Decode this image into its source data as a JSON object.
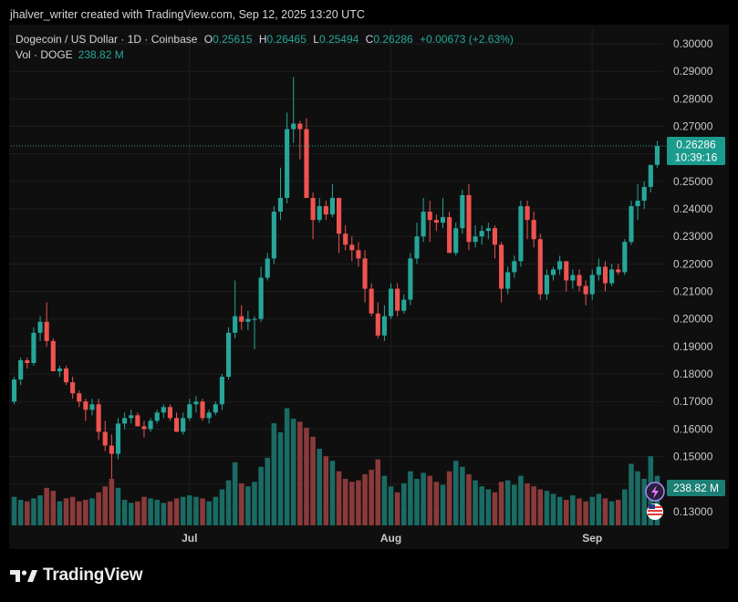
{
  "header": {
    "created_text": "jhalver_writer created with TradingView.com, Sep 12, 2025 13:20 UTC"
  },
  "legend": {
    "symbol": "Dogecoin / US Dollar · 1D · Coinbase",
    "o_label": "O",
    "o_value": "0.25615",
    "h_label": "H",
    "h_value": "0.26465",
    "l_label": "L",
    "l_value": "0.25494",
    "c_label": "C",
    "c_value": "0.26286",
    "change": "+0.00673 (+2.63%)",
    "vol_label": "Vol · DOGE",
    "vol_value": "238.82 M"
  },
  "price_tag": {
    "price": "0.26286",
    "countdown": "10:39:16"
  },
  "volume_tag": "238.82 M",
  "footer": {
    "brand": "TradingView"
  },
  "colors": {
    "up": "#26a69a",
    "down": "#ef5350",
    "vol_up": "#1a6b64",
    "vol_down": "#8a3a3a",
    "bg": "#0f0f0f",
    "grid": "#1f1f1f",
    "axis_text": "#c8c8c8"
  },
  "icons": {
    "logo": "tradingview-logo-icon",
    "event_1": "lightning-event-icon",
    "event_2": "us-flag-event-icon"
  },
  "chart_data": {
    "type": "candlestick",
    "ylim": [
      0.125,
      0.302
    ],
    "yticks": [
      "0.30000",
      "0.29000",
      "0.28000",
      "0.27000",
      "0.26000",
      "0.25000",
      "0.24000",
      "0.23000",
      "0.22000",
      "0.21000",
      "0.20000",
      "0.19000",
      "0.18000",
      "0.17000",
      "0.16000",
      "0.15000",
      "0.14000",
      "0.13000"
    ],
    "xticks": [
      {
        "label": "Jul",
        "index": 27
      },
      {
        "label": "Aug",
        "index": 58
      },
      {
        "label": "Sep",
        "index": 89
      }
    ],
    "candles": [
      [
        0.17,
        0.179,
        0.169,
        0.178,
        1.9
      ],
      [
        0.178,
        0.186,
        0.176,
        0.185,
        1.7
      ],
      [
        0.185,
        0.186,
        0.182,
        0.184,
        1.6
      ],
      [
        0.184,
        0.197,
        0.183,
        0.195,
        1.8
      ],
      [
        0.195,
        0.201,
        0.192,
        0.199,
        2.0
      ],
      [
        0.199,
        0.206,
        0.19,
        0.192,
        2.5
      ],
      [
        0.192,
        0.193,
        0.181,
        0.181,
        2.3
      ],
      [
        0.181,
        0.183,
        0.179,
        0.182,
        1.6
      ],
      [
        0.182,
        0.183,
        0.176,
        0.177,
        1.8
      ],
      [
        0.177,
        0.179,
        0.171,
        0.173,
        1.9
      ],
      [
        0.173,
        0.174,
        0.168,
        0.17,
        1.6
      ],
      [
        0.17,
        0.171,
        0.163,
        0.167,
        1.7
      ],
      [
        0.167,
        0.171,
        0.165,
        0.169,
        1.8
      ],
      [
        0.169,
        0.171,
        0.156,
        0.159,
        2.2
      ],
      [
        0.159,
        0.163,
        0.152,
        0.154,
        2.6
      ],
      [
        0.154,
        0.158,
        0.142,
        0.151,
        3.1
      ],
      [
        0.151,
        0.164,
        0.149,
        0.162,
        2.5
      ],
      [
        0.162,
        0.166,
        0.16,
        0.164,
        1.7
      ],
      [
        0.164,
        0.167,
        0.162,
        0.165,
        1.5
      ],
      [
        0.165,
        0.166,
        0.161,
        0.161,
        1.6
      ],
      [
        0.161,
        0.163,
        0.157,
        0.16,
        1.9
      ],
      [
        0.16,
        0.164,
        0.159,
        0.163,
        1.8
      ],
      [
        0.163,
        0.167,
        0.162,
        0.166,
        1.7
      ],
      [
        0.166,
        0.169,
        0.164,
        0.168,
        1.5
      ],
      [
        0.168,
        0.169,
        0.163,
        0.164,
        1.6
      ],
      [
        0.164,
        0.166,
        0.159,
        0.159,
        1.8
      ],
      [
        0.159,
        0.166,
        0.158,
        0.164,
        1.9
      ],
      [
        0.164,
        0.171,
        0.163,
        0.169,
        2.0
      ],
      [
        0.169,
        0.172,
        0.166,
        0.17,
        1.9
      ],
      [
        0.17,
        0.171,
        0.163,
        0.164,
        1.8
      ],
      [
        0.164,
        0.167,
        0.162,
        0.166,
        1.6
      ],
      [
        0.166,
        0.17,
        0.165,
        0.169,
        1.9
      ],
      [
        0.169,
        0.18,
        0.167,
        0.179,
        2.4
      ],
      [
        0.179,
        0.197,
        0.178,
        0.195,
        3.0
      ],
      [
        0.195,
        0.214,
        0.193,
        0.201,
        4.2
      ],
      [
        0.201,
        0.205,
        0.196,
        0.199,
        2.8
      ],
      [
        0.199,
        0.203,
        0.196,
        0.2,
        2.6
      ],
      [
        0.2,
        0.201,
        0.189,
        0.2,
        2.9
      ],
      [
        0.2,
        0.219,
        0.199,
        0.215,
        3.9
      ],
      [
        0.215,
        0.224,
        0.214,
        0.222,
        4.5
      ],
      [
        0.222,
        0.241,
        0.22,
        0.239,
        6.8
      ],
      [
        0.239,
        0.255,
        0.236,
        0.244,
        6.2
      ],
      [
        0.244,
        0.275,
        0.242,
        0.269,
        7.8
      ],
      [
        0.269,
        0.288,
        0.264,
        0.271,
        7.1
      ],
      [
        0.271,
        0.272,
        0.258,
        0.269,
        6.9
      ],
      [
        0.269,
        0.273,
        0.244,
        0.244,
        6.5
      ],
      [
        0.244,
        0.246,
        0.229,
        0.236,
        5.9
      ],
      [
        0.236,
        0.244,
        0.235,
        0.241,
        5.1
      ],
      [
        0.241,
        0.243,
        0.236,
        0.238,
        4.6
      ],
      [
        0.238,
        0.249,
        0.237,
        0.244,
        4.3
      ],
      [
        0.244,
        0.244,
        0.224,
        0.231,
        3.6
      ],
      [
        0.231,
        0.234,
        0.225,
        0.227,
        3.1
      ],
      [
        0.227,
        0.23,
        0.221,
        0.225,
        2.9
      ],
      [
        0.225,
        0.228,
        0.219,
        0.222,
        3.0
      ],
      [
        0.222,
        0.225,
        0.206,
        0.211,
        3.4
      ],
      [
        0.211,
        0.213,
        0.201,
        0.202,
        3.7
      ],
      [
        0.202,
        0.206,
        0.193,
        0.194,
        4.4
      ],
      [
        0.194,
        0.205,
        0.192,
        0.201,
        3.3
      ],
      [
        0.201,
        0.213,
        0.2,
        0.211,
        2.6
      ],
      [
        0.211,
        0.213,
        0.201,
        0.203,
        2.2
      ],
      [
        0.203,
        0.209,
        0.202,
        0.207,
        2.8
      ],
      [
        0.207,
        0.224,
        0.205,
        0.222,
        3.6
      ],
      [
        0.222,
        0.235,
        0.22,
        0.23,
        3.1
      ],
      [
        0.23,
        0.244,
        0.228,
        0.239,
        3.5
      ],
      [
        0.239,
        0.243,
        0.228,
        0.236,
        3.3
      ],
      [
        0.236,
        0.238,
        0.232,
        0.235,
        2.9
      ],
      [
        0.235,
        0.244,
        0.233,
        0.237,
        2.7
      ],
      [
        0.237,
        0.239,
        0.224,
        0.224,
        3.6
      ],
      [
        0.224,
        0.235,
        0.223,
        0.233,
        4.3
      ],
      [
        0.233,
        0.247,
        0.231,
        0.245,
        3.9
      ],
      [
        0.245,
        0.249,
        0.225,
        0.228,
        3.4
      ],
      [
        0.228,
        0.234,
        0.226,
        0.23,
        3.0
      ],
      [
        0.23,
        0.234,
        0.227,
        0.232,
        2.6
      ],
      [
        0.232,
        0.235,
        0.229,
        0.233,
        2.4
      ],
      [
        0.233,
        0.234,
        0.222,
        0.227,
        2.2
      ],
      [
        0.227,
        0.228,
        0.206,
        0.211,
        2.9
      ],
      [
        0.211,
        0.219,
        0.209,
        0.217,
        3.0
      ],
      [
        0.217,
        0.223,
        0.215,
        0.221,
        2.7
      ],
      [
        0.221,
        0.243,
        0.219,
        0.241,
        3.3
      ],
      [
        0.241,
        0.243,
        0.229,
        0.236,
        2.8
      ],
      [
        0.236,
        0.239,
        0.226,
        0.229,
        2.6
      ],
      [
        0.229,
        0.231,
        0.207,
        0.209,
        2.4
      ],
      [
        0.209,
        0.218,
        0.207,
        0.216,
        2.3
      ],
      [
        0.216,
        0.219,
        0.214,
        0.218,
        2.1
      ],
      [
        0.218,
        0.223,
        0.216,
        0.221,
        1.9
      ],
      [
        0.221,
        0.221,
        0.21,
        0.214,
        1.7
      ],
      [
        0.214,
        0.218,
        0.211,
        0.216,
        2.0
      ],
      [
        0.216,
        0.218,
        0.21,
        0.212,
        1.8
      ],
      [
        0.212,
        0.214,
        0.205,
        0.209,
        1.6
      ],
      [
        0.209,
        0.218,
        0.207,
        0.216,
        1.9
      ],
      [
        0.216,
        0.222,
        0.214,
        0.219,
        2.1
      ],
      [
        0.219,
        0.221,
        0.21,
        0.213,
        1.8
      ],
      [
        0.213,
        0.22,
        0.212,
        0.218,
        1.6
      ],
      [
        0.218,
        0.22,
        0.216,
        0.217,
        1.7
      ],
      [
        0.217,
        0.229,
        0.216,
        0.228,
        2.4
      ],
      [
        0.228,
        0.243,
        0.227,
        0.241,
        4.1
      ],
      [
        0.241,
        0.249,
        0.236,
        0.243,
        3.6
      ],
      [
        0.243,
        0.25,
        0.24,
        0.248,
        3.1
      ],
      [
        0.248,
        0.256,
        0.246,
        0.256,
        4.6
      ],
      [
        0.256,
        0.2647,
        0.2549,
        0.2629,
        3.3
      ]
    ]
  }
}
